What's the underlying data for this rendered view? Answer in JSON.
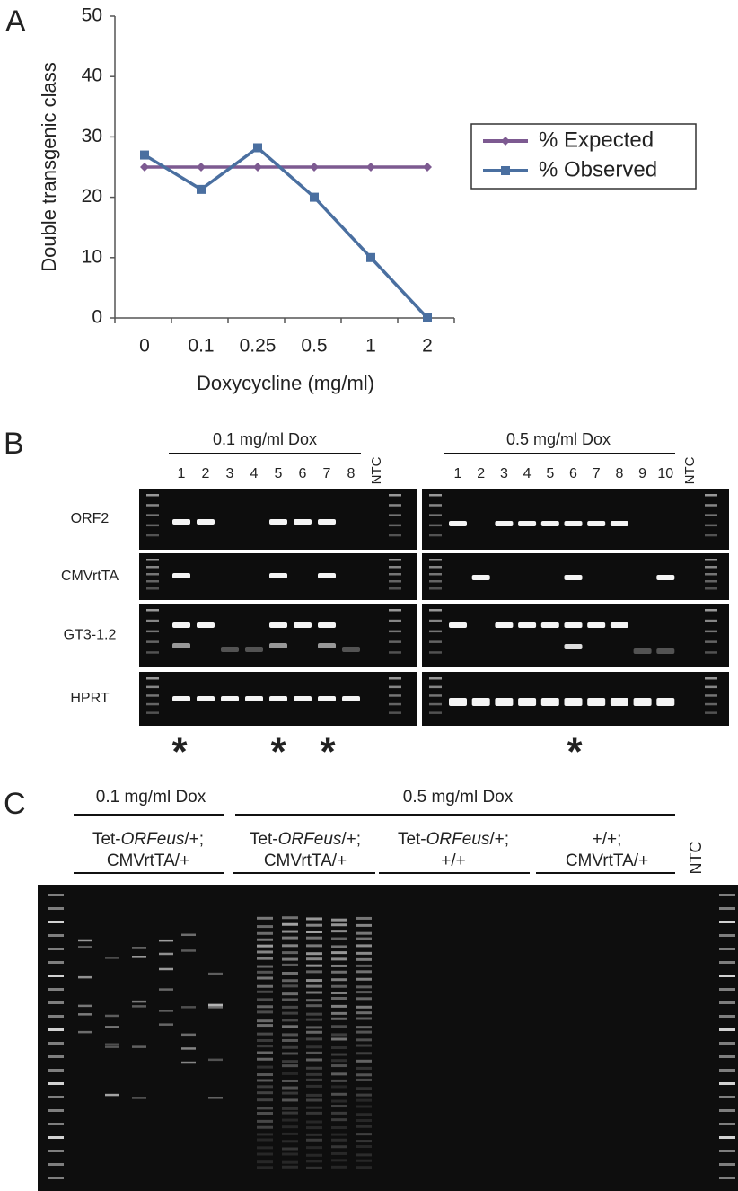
{
  "chart_data": {
    "type": "line",
    "panel_label": "A",
    "categories": [
      "0",
      "0.1",
      "0.25",
      "0.5",
      "1",
      "2"
    ],
    "series": [
      {
        "name": "% Expected",
        "color": "#7d5a91",
        "marker": "diamond",
        "values": [
          25,
          25,
          25,
          25,
          25,
          25
        ]
      },
      {
        "name": "% Observed",
        "color": "#4a6fa0",
        "marker": "square",
        "values": [
          27,
          21.3,
          28.2,
          20,
          10,
          0
        ]
      }
    ],
    "x_label": "Doxycycline (mg/ml)",
    "y_label": "Double transgenic class",
    "ylim": [
      0,
      50
    ],
    "yticks": [
      0,
      10,
      20,
      30,
      40,
      50
    ],
    "legend": "right"
  },
  "panel_b": {
    "panel_label": "B",
    "groups": [
      {
        "title": "0.1 mg/ml Dox",
        "lanes": [
          "1",
          "2",
          "3",
          "4",
          "5",
          "6",
          "7",
          "8"
        ],
        "control": "NTC"
      },
      {
        "title": "0.5 mg/ml Dox",
        "lanes": [
          "1",
          "2",
          "3",
          "4",
          "5",
          "6",
          "7",
          "8",
          "9",
          "10"
        ],
        "control": "NTC"
      }
    ],
    "rows": [
      "ORF2",
      "CMVrtTA",
      "GT3-1.2",
      "HPRT"
    ],
    "markers": [
      "*",
      "*",
      "*",
      "*"
    ]
  },
  "panel_c": {
    "panel_label": "C",
    "conditions": [
      "0.1 mg/ml Dox",
      "0.5 mg/ml Dox"
    ],
    "genotypes": [
      {
        "line1": [
          "Tet-",
          "ORFeus",
          "/+;"
        ],
        "line2": "CMVrtTA/+"
      },
      {
        "line1": [
          "Tet-",
          "ORFeus",
          "/+;"
        ],
        "line2": "CMVrtTA/+"
      },
      {
        "line1": [
          "Tet-",
          "ORFeus",
          "/+;"
        ],
        "line2": "+/+"
      },
      {
        "line1": [
          "+/+;"
        ],
        "line2": "CMVrtTA/+"
      }
    ],
    "control": "NTC"
  }
}
